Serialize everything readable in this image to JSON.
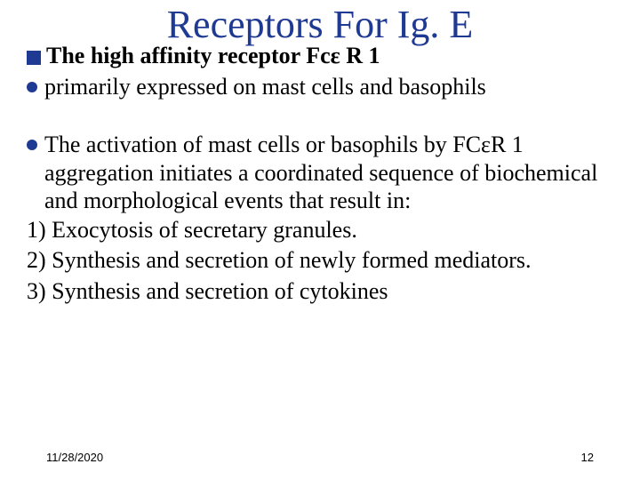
{
  "title": "Receptors For Ig. E",
  "section_heading": "The high affinity receptor Fcε R 1",
  "bullet1": "primarily expressed on mast cells and basophils",
  "bullet2": "The activation of mast cells or basophils by FCεR 1 aggregation initiates a coordinated sequence of biochemical and morphological events that result in:",
  "num1": " 1) Exocytosis of secretary granules.",
  "num2": "  2) Synthesis and secretion of newly formed mediators.",
  "num3": "  3) Synthesis and secretion of cytokines",
  "footer_date": "11/28/2020",
  "footer_page": "12",
  "colors": {
    "title": "#1f3a93",
    "marker": "#1f3a93",
    "text": "#000000",
    "background": "#ffffff"
  }
}
